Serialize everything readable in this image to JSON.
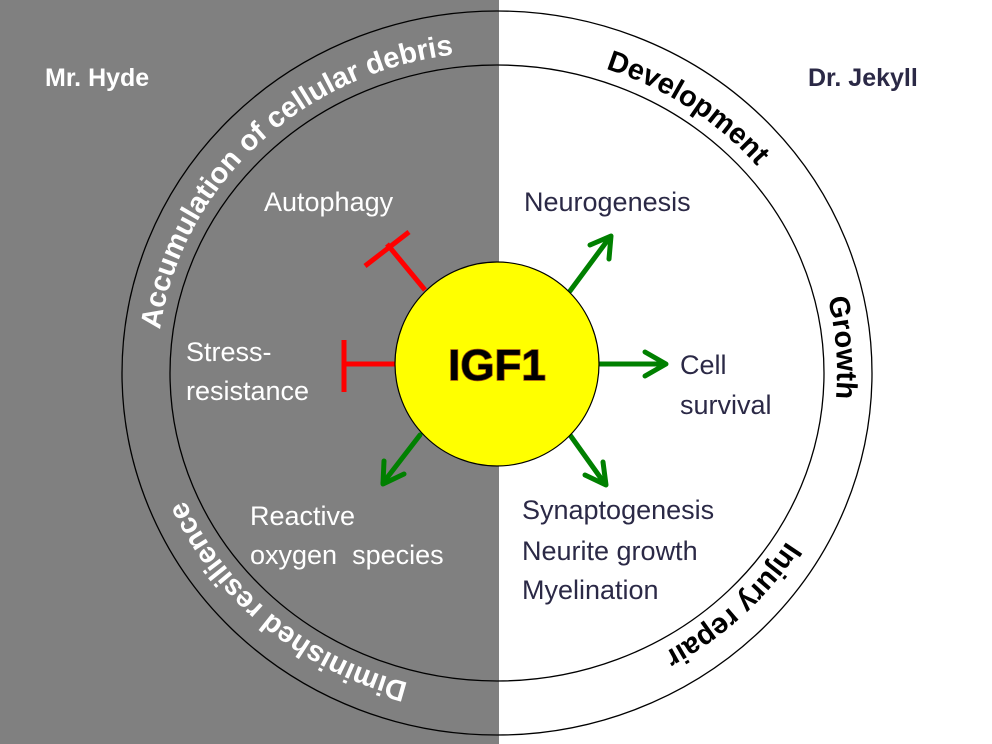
{
  "sides": {
    "left_title": "Mr. Hyde",
    "right_title": "Dr. Jekyll"
  },
  "center": {
    "label": "IGF1"
  },
  "ring": {
    "accumulation": "Accumulation of cellular debris",
    "development": "Development",
    "growth": "Growth",
    "injury": "Injury repair",
    "diminished": "Diminished resilience"
  },
  "left_items": {
    "autophagy": "Autophagy",
    "stress_1": "Stress-",
    "stress_2": "resistance",
    "ros_1": "Reactive",
    "ros_2": "oxygen  species"
  },
  "right_items": {
    "neurogenesis": "Neurogenesis",
    "cell_1": "Cell",
    "cell_2": "survival",
    "syn_1": "Synaptogenesis",
    "syn_2": "Neurite growth",
    "syn_3": "Myelination"
  },
  "colors": {
    "left_bg": "#808080",
    "right_bg": "#ffffff",
    "center_fill": "#ffff00",
    "activation": "#008000",
    "inhibition": "#ff0000",
    "right_text": "#2b2946"
  }
}
